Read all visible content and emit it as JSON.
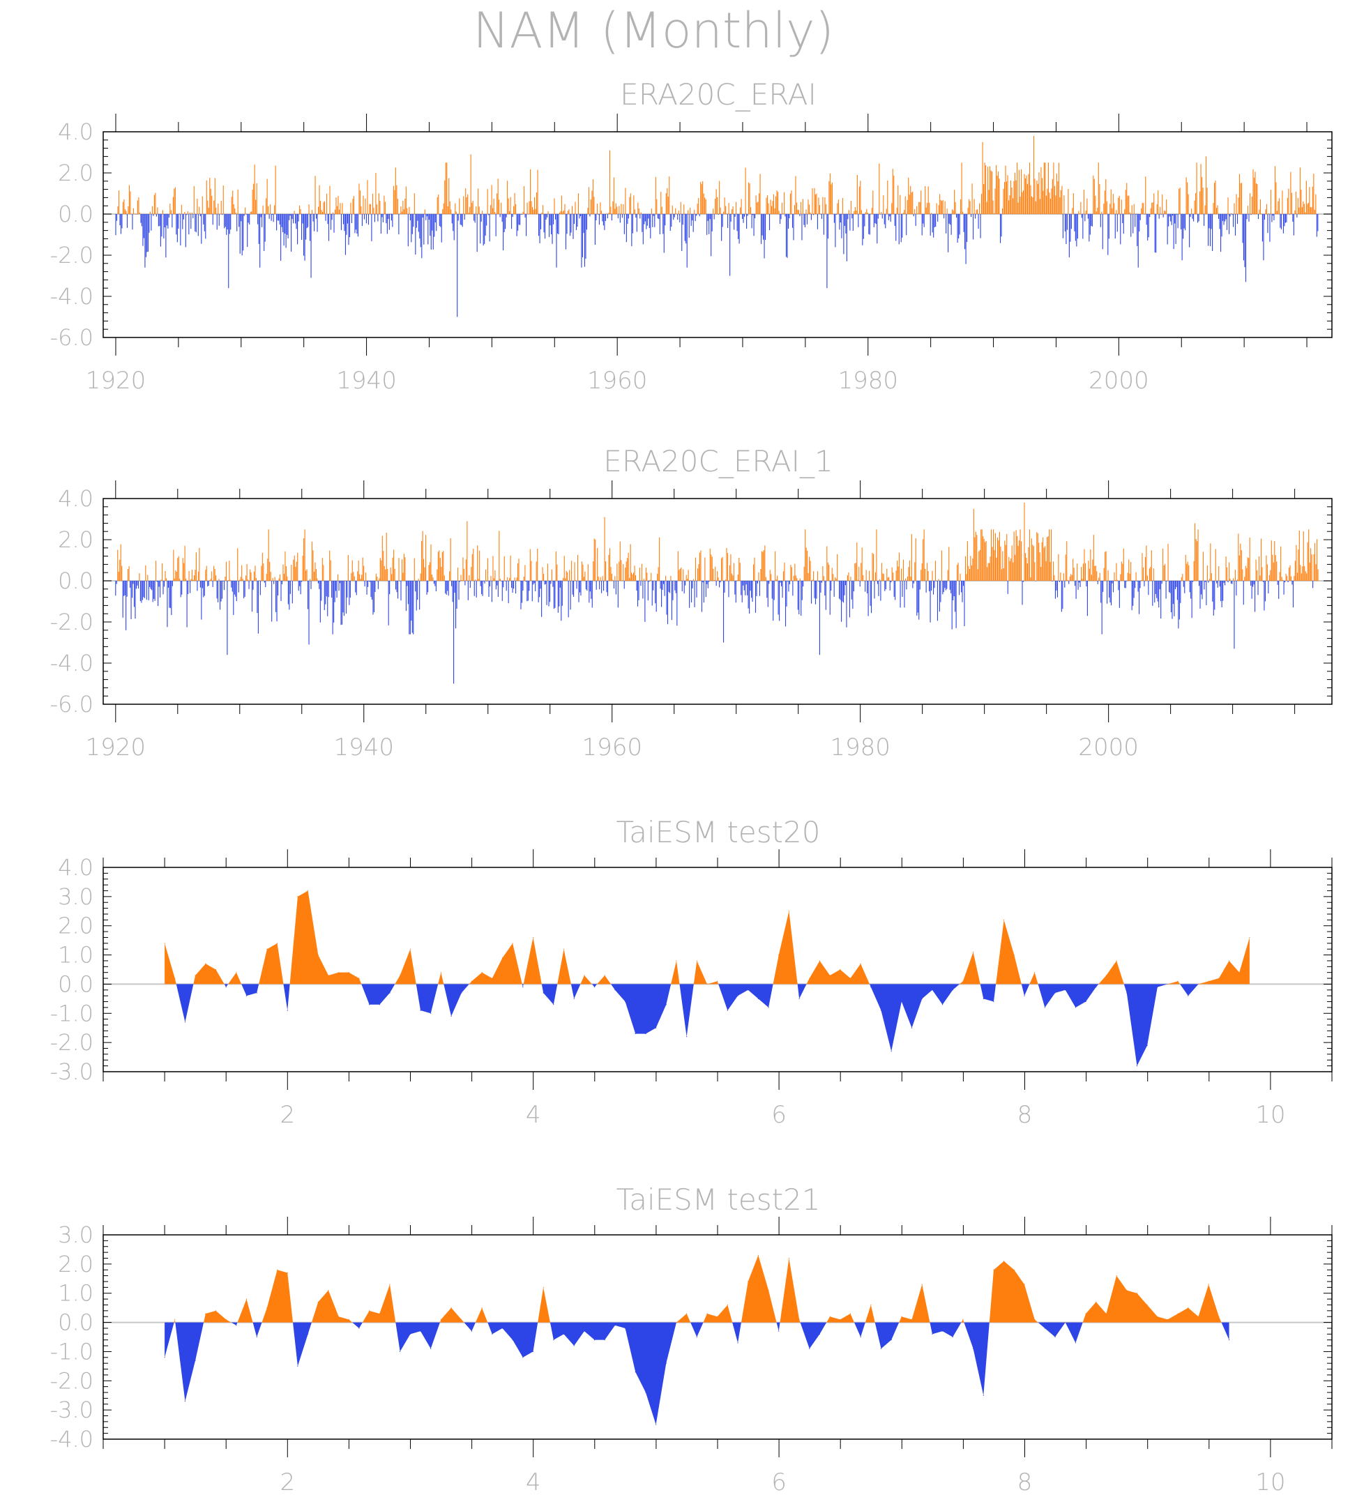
{
  "figure": {
    "title": "NAM (Monthly)",
    "text_color": "#b3b3b3",
    "axis_color": "#000000",
    "zero_line_color": "#c8c8c8",
    "positive_color": "#ff7f0e",
    "negative_color": "#2d44e6"
  },
  "chart_data": [
    {
      "type": "area",
      "title": "ERA20C_ERAI",
      "xlim": [
        1919,
        2017
      ],
      "ylim": [
        -6.0,
        4.0
      ],
      "xticks": [
        1920,
        1940,
        1960,
        1980,
        2000
      ],
      "xticklabels": [
        "1920",
        "1940",
        "1960",
        "1980",
        "2000"
      ],
      "yticks": [
        4.0,
        2.0,
        0.0,
        -2.0,
        -4.0,
        -6.0
      ],
      "yticklabels": [
        "4.0",
        "2.0",
        "0.0",
        "-2.0",
        "-4.0",
        "-6.0"
      ],
      "x_start": 1920.0,
      "x_step": 0.0833,
      "monthly_value_count": 1152,
      "notable_values": [
        {
          "x": 1929.0,
          "y": -3.6
        },
        {
          "x": 1935.6,
          "y": -3.1
        },
        {
          "x": 1947.2,
          "y": -5.0
        },
        {
          "x": 1948.3,
          "y": 2.9
        },
        {
          "x": 1959.4,
          "y": 3.1
        },
        {
          "x": 1969.0,
          "y": -3.0
        },
        {
          "x": 1976.7,
          "y": -3.6
        },
        {
          "x": 1989.1,
          "y": 3.5
        },
        {
          "x": 1993.2,
          "y": 3.8
        },
        {
          "x": 2007.0,
          "y": 2.8
        },
        {
          "x": 2010.1,
          "y": -3.3
        }
      ],
      "grid": false,
      "legend": "none"
    },
    {
      "type": "area",
      "title": "ERA20C_ERAI_1",
      "xlim": [
        1919,
        2018
      ],
      "ylim": [
        -6.0,
        4.0
      ],
      "xticks": [
        1920,
        1940,
        1960,
        1980,
        2000
      ],
      "xticklabels": [
        "1920",
        "1940",
        "1960",
        "1980",
        "2000"
      ],
      "yticks": [
        4.0,
        2.0,
        0.0,
        -2.0,
        -4.0,
        -6.0
      ],
      "yticklabels": [
        "4.0",
        "2.0",
        "0.0",
        "-2.0",
        "-4.0",
        "-6.0"
      ],
      "x_start": 1920.0,
      "x_step": 0.0833,
      "monthly_value_count": 1164,
      "notable_values": [
        {
          "x": 1929.0,
          "y": -3.6
        },
        {
          "x": 1935.6,
          "y": -3.1
        },
        {
          "x": 1947.2,
          "y": -5.0
        },
        {
          "x": 1948.3,
          "y": 2.9
        },
        {
          "x": 1959.4,
          "y": 3.1
        },
        {
          "x": 1969.0,
          "y": -3.0
        },
        {
          "x": 1976.7,
          "y": -3.6
        },
        {
          "x": 1989.1,
          "y": 3.5
        },
        {
          "x": 1993.2,
          "y": 3.8
        },
        {
          "x": 2007.0,
          "y": 2.8
        },
        {
          "x": 2010.1,
          "y": -3.3
        }
      ],
      "grid": false,
      "legend": "none"
    },
    {
      "type": "area",
      "title": "TaiESM test20",
      "xlim": [
        0.5,
        10.5
      ],
      "ylim": [
        -3.0,
        4.0
      ],
      "xticks": [
        2,
        4,
        6,
        8,
        10
      ],
      "xticklabels": [
        "2",
        "4",
        "6",
        "8",
        "10"
      ],
      "yticks": [
        4.0,
        3.0,
        2.0,
        1.0,
        0.0,
        -1.0,
        -2.0,
        -3.0
      ],
      "yticklabels": [
        "4.0",
        "3.0",
        "2.0",
        "1.0",
        "0.0",
        "-1.0",
        "-2.0",
        "-3.0"
      ],
      "x_start": 1.0,
      "x_step": 0.0833,
      "y": [
        1.4,
        0.2,
        -1.3,
        0.3,
        0.7,
        0.5,
        -0.1,
        0.4,
        -0.4,
        -0.3,
        1.2,
        1.4,
        -0.9,
        3.0,
        3.2,
        1.0,
        0.3,
        0.4,
        0.4,
        0.2,
        -0.7,
        -0.7,
        -0.3,
        0.3,
        1.2,
        -0.9,
        -1.0,
        0.4,
        -1.1,
        -0.3,
        0.1,
        0.4,
        0.2,
        0.9,
        1.4,
        -0.1,
        1.6,
        -0.3,
        -0.7,
        1.2,
        -0.5,
        0.3,
        -0.1,
        0.3,
        -0.2,
        -0.6,
        -1.7,
        -1.7,
        -1.5,
        -0.7,
        0.8,
        -1.8,
        0.8,
        0.0,
        0.1,
        -0.9,
        -0.4,
        -0.2,
        -0.5,
        -0.8,
        1.0,
        2.5,
        -0.5,
        0.2,
        0.8,
        0.3,
        0.5,
        0.2,
        0.7,
        -0.1,
        -0.9,
        -2.3,
        -0.6,
        -1.5,
        -0.5,
        -0.2,
        -0.7,
        -0.2,
        0.1,
        1.1,
        -0.5,
        -0.6,
        2.2,
        1.0,
        -0.4,
        0.4,
        -0.8,
        -0.3,
        -0.2,
        -0.8,
        -0.6,
        -0.1,
        0.3,
        0.8,
        -0.3,
        -2.8,
        -2.1,
        -0.1,
        0.0,
        0.1,
        -0.4,
        0.0,
        0.1,
        0.2,
        0.8,
        0.4,
        1.6
      ],
      "grid": false,
      "legend": "none"
    },
    {
      "type": "area",
      "title": "TaiESM test21",
      "xlim": [
        0.5,
        10.5
      ],
      "ylim": [
        -4.0,
        3.0
      ],
      "xticks": [
        2,
        4,
        6,
        8,
        10
      ],
      "xticklabels": [
        "2",
        "4",
        "6",
        "8",
        "10"
      ],
      "yticks": [
        3.0,
        2.0,
        1.0,
        0.0,
        -1.0,
        -2.0,
        -3.0,
        -4.0
      ],
      "yticklabels": [
        "3.0",
        "2.0",
        "1.0",
        "0.0",
        "-1.0",
        "-2.0",
        "-3.0",
        "-4.0"
      ],
      "x_start": 1.0,
      "x_step": 0.0833,
      "y": [
        -1.2,
        0.1,
        -2.7,
        -1.3,
        0.3,
        0.4,
        0.1,
        -0.1,
        0.8,
        -0.5,
        0.5,
        1.8,
        1.7,
        -1.5,
        -0.4,
        0.7,
        1.1,
        0.2,
        0.1,
        -0.2,
        0.4,
        0.3,
        1.3,
        -1.0,
        -0.4,
        -0.3,
        -0.9,
        0.1,
        0.5,
        0.1,
        -0.3,
        0.5,
        -0.4,
        -0.2,
        -0.6,
        -1.2,
        -1.0,
        1.2,
        -0.6,
        -0.4,
        -0.8,
        -0.3,
        -0.6,
        -0.6,
        -0.1,
        -0.2,
        -1.7,
        -2.4,
        -3.5,
        -1.4,
        0.0,
        0.3,
        -0.5,
        0.3,
        0.2,
        0.6,
        -0.7,
        1.4,
        2.3,
        1.1,
        -0.3,
        2.2,
        0.1,
        -0.9,
        -0.4,
        0.2,
        0.1,
        0.3,
        -0.5,
        0.6,
        -0.9,
        -0.6,
        0.2,
        0.1,
        1.3,
        -0.4,
        -0.3,
        -0.5,
        0.1,
        -0.9,
        -2.5,
        1.8,
        2.1,
        1.8,
        1.3,
        0.1,
        -0.2,
        -0.5,
        0.0,
        -0.7,
        0.3,
        0.7,
        0.3,
        1.6,
        1.1,
        1.0,
        0.6,
        0.2,
        0.1,
        0.3,
        0.5,
        0.2,
        1.3,
        0.2,
        -0.6
      ],
      "grid": false,
      "legend": "none"
    }
  ]
}
